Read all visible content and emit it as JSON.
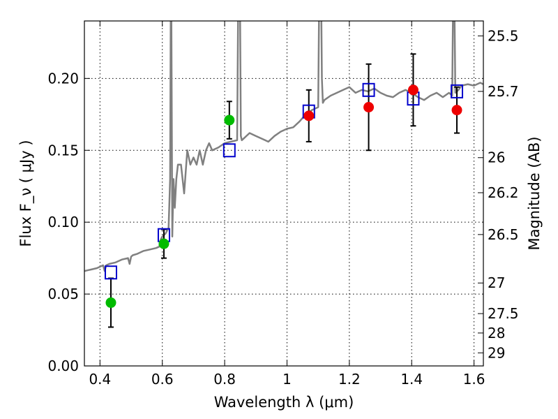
{
  "chart_data": {
    "type": "scatter",
    "title": "",
    "xlabel": "Wavelength  λ (μm)",
    "ylabel_left": "Flux  F_ν  ( μJy )",
    "ylabel_right": "Magnitude (AB)",
    "xlim": [
      0.35,
      1.63
    ],
    "ylim": [
      0.0,
      0.24
    ],
    "x_ticks": [
      0.4,
      0.6,
      0.8,
      1.0,
      1.2,
      1.4,
      1.6
    ],
    "x_tick_labels": [
      "0.4",
      "0.6",
      "0.8",
      "1",
      "1.2",
      "1.4",
      "1.6"
    ],
    "y_ticks": [
      0.0,
      0.05,
      0.1,
      0.15,
      0.2
    ],
    "y_tick_labels": [
      "0.00",
      "0.05",
      "0.10",
      "0.15",
      "0.20"
    ],
    "right_ticks": [
      {
        "label": "25.5",
        "flux": 0.2296
      },
      {
        "label": "25.7",
        "flux": 0.191
      },
      {
        "label": "26",
        "flux": 0.1449
      },
      {
        "label": "26.2",
        "flux": 0.1205
      },
      {
        "label": "26.5",
        "flux": 0.0914
      },
      {
        "label": "27",
        "flux": 0.0577
      },
      {
        "label": "27.5",
        "flux": 0.0364
      },
      {
        "label": "28",
        "flux": 0.0229
      },
      {
        "label": "29",
        "flux": 0.0091
      }
    ],
    "grid": true,
    "colors": {
      "spectrum": "#808080",
      "model_marker": "#0000cc",
      "hst_points": "#00bb00",
      "ir_points": "#ee0000",
      "errorbar": "#000000"
    },
    "series": [
      {
        "kind": "line",
        "color": "#808080",
        "x": [
          0.35,
          0.37,
          0.39,
          0.41,
          0.415,
          0.42,
          0.43,
          0.45,
          0.47,
          0.49,
          0.495,
          0.5,
          0.505,
          0.52,
          0.54,
          0.56,
          0.58,
          0.59,
          0.595,
          0.6,
          0.61,
          0.615,
          0.62,
          0.625,
          0.628,
          0.632,
          0.636,
          0.64,
          0.645,
          0.65,
          0.66,
          0.67,
          0.68,
          0.69,
          0.7,
          0.71,
          0.72,
          0.73,
          0.74,
          0.75,
          0.76,
          0.78,
          0.8,
          0.82,
          0.84,
          0.845,
          0.848,
          0.852,
          0.855,
          0.86,
          0.88,
          0.9,
          0.92,
          0.94,
          0.96,
          0.98,
          1.0,
          1.02,
          1.04,
          1.06,
          1.08,
          1.1,
          1.105,
          1.108,
          1.112,
          1.115,
          1.12,
          1.14,
          1.16,
          1.18,
          1.2,
          1.22,
          1.24,
          1.26,
          1.28,
          1.3,
          1.32,
          1.34,
          1.36,
          1.38,
          1.4,
          1.42,
          1.44,
          1.46,
          1.48,
          1.5,
          1.52,
          1.53,
          1.535,
          1.54,
          1.55,
          1.56,
          1.58,
          1.6,
          1.62,
          1.63
        ],
        "y": [
          0.066,
          0.067,
          0.068,
          0.07,
          0.066,
          0.07,
          0.071,
          0.072,
          0.074,
          0.075,
          0.071,
          0.076,
          0.077,
          0.078,
          0.08,
          0.081,
          0.082,
          0.083,
          0.088,
          0.09,
          0.092,
          0.094,
          0.096,
          0.13,
          0.3,
          0.09,
          0.13,
          0.11,
          0.13,
          0.14,
          0.14,
          0.12,
          0.15,
          0.14,
          0.145,
          0.14,
          0.15,
          0.14,
          0.15,
          0.155,
          0.15,
          0.152,
          0.155,
          0.156,
          0.157,
          0.3,
          0.3,
          0.16,
          0.157,
          0.158,
          0.162,
          0.16,
          0.158,
          0.156,
          0.16,
          0.163,
          0.165,
          0.166,
          0.17,
          0.175,
          0.178,
          0.18,
          0.3,
          0.3,
          0.2,
          0.183,
          0.185,
          0.188,
          0.19,
          0.192,
          0.194,
          0.19,
          0.192,
          0.191,
          0.193,
          0.19,
          0.188,
          0.187,
          0.19,
          0.192,
          0.19,
          0.187,
          0.185,
          0.188,
          0.19,
          0.187,
          0.19,
          0.188,
          0.3,
          0.19,
          0.192,
          0.195,
          0.196,
          0.195,
          0.197,
          0.196
        ]
      },
      {
        "kind": "model-squares",
        "color": "#0000cc",
        "x": [
          0.435,
          0.605,
          0.815,
          1.07,
          1.262,
          1.405,
          1.545
        ],
        "y": [
          0.065,
          0.091,
          0.15,
          0.177,
          0.192,
          0.186,
          0.191
        ]
      },
      {
        "kind": "points-green",
        "color": "#00bb00",
        "x": [
          0.435,
          0.605,
          0.815
        ],
        "y": [
          0.044,
          0.085,
          0.171
        ],
        "yerr": [
          0.017,
          0.01,
          0.013
        ]
      },
      {
        "kind": "points-red",
        "color": "#ee0000",
        "x": [
          1.07,
          1.262,
          1.405,
          1.545
        ],
        "y": [
          0.174,
          0.18,
          0.192,
          0.178
        ],
        "yerr": [
          0.018,
          0.03,
          0.025,
          0.016
        ]
      }
    ]
  }
}
